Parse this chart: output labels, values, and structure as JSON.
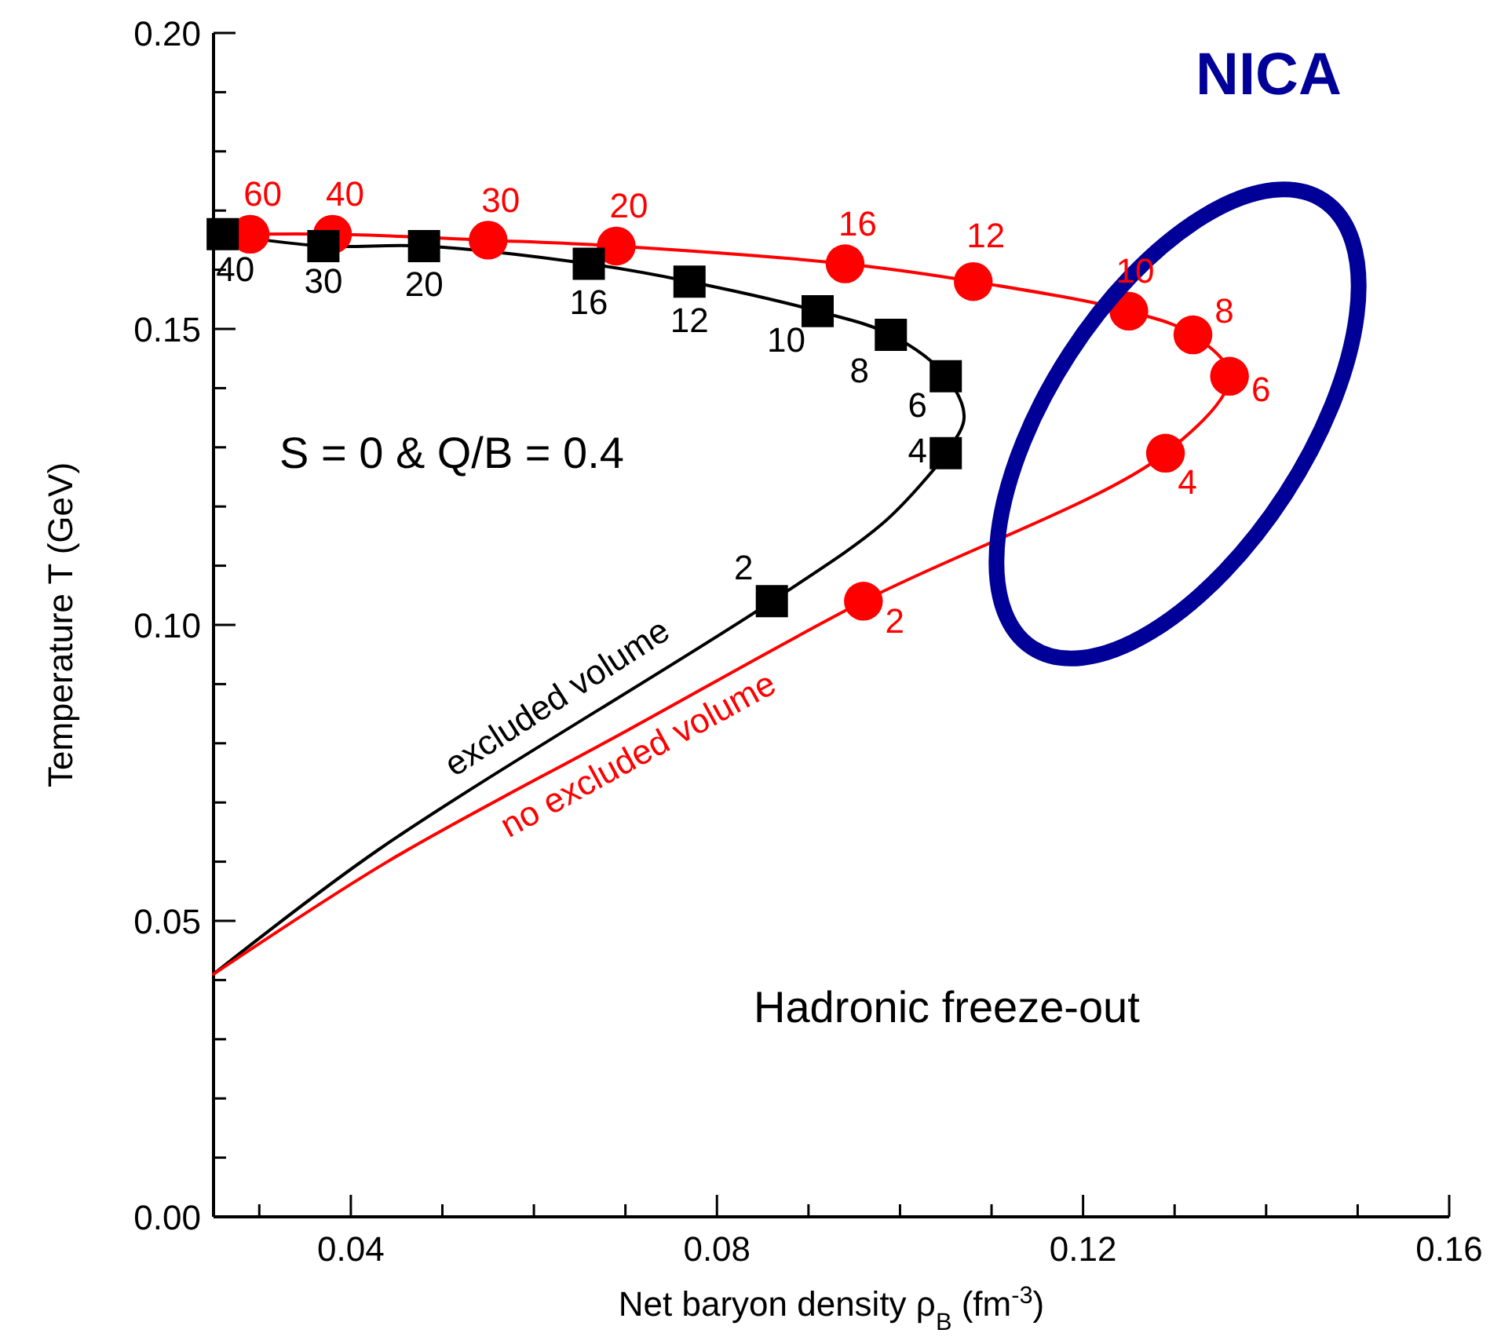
{
  "chart_data": {
    "type": "line",
    "xlabel": "Net baryon density ρ$_{B}$ (fm$^{-3}$)",
    "ylabel": "Temperature T (GeV)",
    "xlim": [
      0.025,
      0.16
    ],
    "ylim": [
      0,
      0.2
    ],
    "xticks": [
      {
        "value": 0.03,
        "label": null
      },
      0.04,
      {
        "value": 0.05,
        "label": null
      },
      {
        "value": 0.06,
        "label": null
      },
      {
        "value": 0.07,
        "label": null
      },
      0.08,
      {
        "value": 0.09,
        "label": null
      },
      {
        "value": 0.1,
        "label": null
      },
      {
        "value": 0.11,
        "label": null
      },
      0.12,
      {
        "value": 0.13,
        "label": null
      },
      {
        "value": 0.14,
        "label": null
      },
      {
        "value": 0.15,
        "label": null
      },
      0.16
    ],
    "yticks": [
      {
        "value": 0,
        "label": "0.00"
      },
      {
        "value": 0.01,
        "label": null
      },
      {
        "value": 0.02,
        "label": null
      },
      {
        "value": 0.03,
        "label": null
      },
      {
        "value": 0.04,
        "label": null
      },
      0.05,
      {
        "value": 0.06,
        "label": null
      },
      {
        "value": 0.07,
        "label": null
      },
      {
        "value": 0.08,
        "label": null
      },
      {
        "value": 0.09,
        "label": null
      },
      {
        "value": 0.1,
        "label": "0.10"
      },
      {
        "value": 0.11,
        "label": null
      },
      {
        "value": 0.12,
        "label": null
      },
      {
        "value": 0.13,
        "label": null
      },
      {
        "value": 0.14,
        "label": null
      },
      0.15,
      {
        "value": 0.16,
        "label": null
      },
      {
        "value": 0.17,
        "label": null
      },
      {
        "value": 0.18,
        "label": null
      },
      {
        "value": 0.19,
        "label": null
      },
      {
        "value": 0.2,
        "label": "0.20"
      }
    ],
    "grid": false,
    "line_style": "solid",
    "series": [
      {
        "name": "excluded volume",
        "color": "#000000",
        "marker": "none",
        "x": [
          0.026,
          0.037,
          0.048,
          0.066,
          0.077,
          0.091,
          0.099,
          0.105,
          0.107,
          0.105,
          0.103,
          0.098,
          0.086,
          0.043,
          0.025
        ],
        "values": [
          0.166,
          0.164,
          0.164,
          0.161,
          0.158,
          0.153,
          0.149,
          0.142,
          0.135,
          0.129,
          0.125,
          0.117,
          0.104,
          0.062,
          0.041
        ]
      },
      {
        "name": "no excluded volume",
        "color": "#ff0000",
        "marker": "none",
        "x": [
          0.029,
          0.038,
          0.055,
          0.069,
          0.094,
          0.108,
          0.125,
          0.132,
          0.136,
          0.129,
          0.096,
          0.07,
          0.044,
          0.025
        ],
        "values": [
          0.166,
          0.166,
          0.165,
          0.164,
          0.161,
          0.158,
          0.153,
          0.149,
          0.142,
          0.129,
          0.104,
          0.082,
          0.06,
          0.041
        ]
      },
      {
        "type": "scatter",
        "color": "#ff0000",
        "marker": "circle",
        "x": [
          0.029,
          0.038,
          0.055,
          0.069,
          0.094,
          0.108,
          0.125,
          0.132,
          0.136,
          0.129,
          0.096
        ],
        "values": [
          0.166,
          0.166,
          0.165,
          0.164,
          0.161,
          0.158,
          0.153,
          0.149,
          0.142,
          0.129,
          0.104
        ]
      },
      {
        "type": "scatter",
        "color": "#000000",
        "marker": "square",
        "x": [
          0.026,
          0.037,
          0.048,
          0.066,
          0.077,
          0.091,
          0.099,
          0.105,
          0.105,
          0.086
        ],
        "values": [
          0.166,
          0.164,
          0.164,
          0.161,
          0.158,
          0.153,
          0.149,
          0.142,
          0.129,
          0.104
        ]
      }
    ],
    "annotations": [
      "S = 0  &  Q/B = 0.4",
      "Hadronic freeze-out",
      "NICA",
      {
        "text": "40",
        "x": 0.026,
        "y": 0.166
      },
      {
        "text": "30",
        "x": 0.037,
        "y": 0.164
      },
      {
        "text": "20",
        "x": 0.048,
        "y": 0.164
      },
      {
        "text": "16",
        "x": 0.066,
        "y": 0.161
      },
      {
        "text": "12",
        "x": 0.077,
        "y": 0.158
      },
      {
        "text": "10",
        "x": 0.091,
        "y": 0.153
      },
      {
        "text": "8",
        "x": 0.099,
        "y": 0.149
      },
      {
        "text": "6",
        "x": 0.105,
        "y": 0.142
      },
      {
        "text": "4",
        "x": 0.105,
        "y": 0.129
      },
      {
        "text": "2",
        "x": 0.086,
        "y": 0.104
      },
      {
        "text": "60",
        "x": 0.029,
        "y": 0.166
      },
      {
        "text": "40",
        "x": 0.038,
        "y": 0.166
      },
      {
        "text": "30",
        "x": 0.055,
        "y": 0.165
      },
      {
        "text": "20",
        "x": 0.069,
        "y": 0.164
      },
      {
        "text": "16",
        "x": 0.094,
        "y": 0.161
      },
      {
        "text": "12",
        "x": 0.108,
        "y": 0.158
      },
      {
        "text": "10",
        "x": 0.125,
        "y": 0.153
      },
      {
        "text": "8",
        "x": 0.132,
        "y": 0.149
      },
      {
        "text": "6",
        "x": 0.136,
        "y": 0.142
      },
      {
        "text": "4",
        "x": 0.129,
        "y": 0.129
      },
      {
        "text": "2",
        "x": 0.096,
        "y": 0.104
      }
    ]
  }
}
